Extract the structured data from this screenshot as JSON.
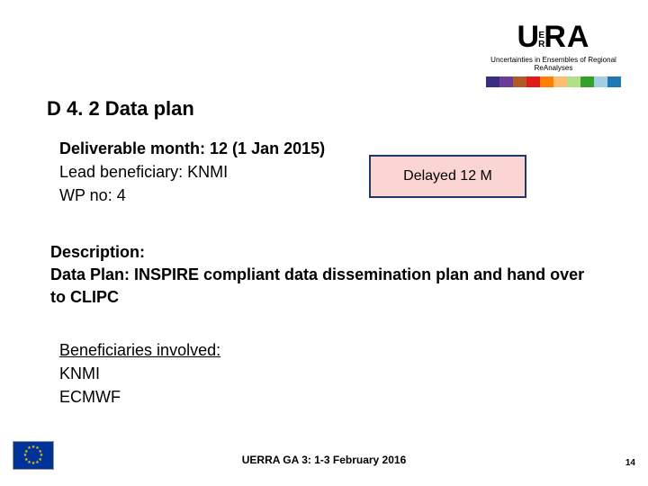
{
  "logo": {
    "letters": "URA",
    "small_top": "E",
    "small_bot": "R",
    "subtitle": "Uncertainties in Ensembles of Regional ReAnalyses",
    "bar_colors": [
      "#3b2e7e",
      "#6a3d9a",
      "#b15928",
      "#e31a1c",
      "#ff7f00",
      "#fdbf6f",
      "#b2df8a",
      "#33a02c",
      "#a6cee3",
      "#1f78b4"
    ]
  },
  "title": "D 4. 2 Data plan",
  "meta": {
    "deliverable_month": "Deliverable month: 12 (1 Jan 2015)",
    "lead": "Lead beneficiary:  KNMI",
    "wp": "WP no: 4"
  },
  "delayed": "Delayed 12 M",
  "description": {
    "heading": "Description:",
    "body": "Data Plan: INSPIRE compliant data dissemination plan and hand over to CLIPC"
  },
  "beneficiaries": {
    "heading": "Beneficiaries involved:",
    "list": [
      "KNMI",
      "ECMWF"
    ]
  },
  "footer": "UERRA GA 3: 1-3 February 2016",
  "page_number": "14",
  "colors": {
    "delayed_bg": "#fbd4d4",
    "delayed_border": "#203864",
    "eu_blue": "#003399",
    "eu_gold": "#ffcc00"
  }
}
